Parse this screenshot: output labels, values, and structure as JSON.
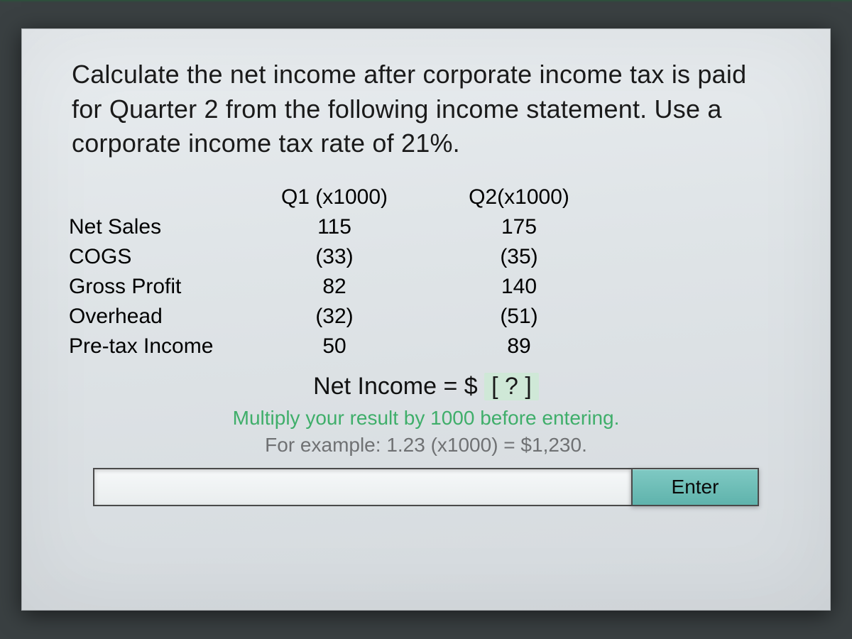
{
  "prompt": "Calculate the net income after corporate income tax is paid for Quarter 2 from the following income statement. Use a corporate income tax rate of 21%.",
  "table": {
    "columns": [
      "Q1 (x1000)",
      "Q2(x1000)"
    ],
    "rows": [
      {
        "label": "Net Sales",
        "q1": "115",
        "q2": "175"
      },
      {
        "label": "COGS",
        "q1": "(33)",
        "q2": "(35)"
      },
      {
        "label": "Gross Profit",
        "q1": "82",
        "q2": "140"
      },
      {
        "label": "Overhead",
        "q1": "(32)",
        "q2": "(51)"
      },
      {
        "label": "Pre-tax Income",
        "q1": "50",
        "q2": "89"
      }
    ],
    "font_size_pt": 30,
    "text_color": "#000000"
  },
  "answer": {
    "prefix": "Net Income = $ ",
    "blank_text": "[ ? ]",
    "blank_bg": "#cfe8d7"
  },
  "hint": {
    "line1": "Multiply your result by 1000 before entering.",
    "line2": "For example: 1.23 (x1000) =  $1,230.",
    "line1_color": "#3fae6a",
    "line2_color": "#6f7173"
  },
  "input": {
    "placeholder": "",
    "value": ""
  },
  "enter_label": "Enter",
  "colors": {
    "page_bg": "#3a4042",
    "panel_bg_top": "#e8ecef",
    "panel_bg_bottom": "#d5dade",
    "enter_btn_top": "#7fc9c3",
    "enter_btn_bottom": "#5fb3ac",
    "border": "#4a4a4a"
  }
}
